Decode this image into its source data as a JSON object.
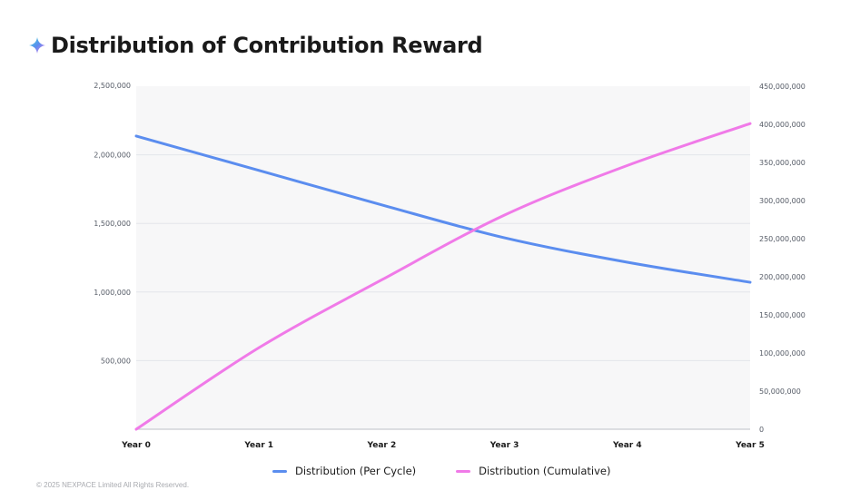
{
  "header": {
    "title": "Distribution of Contribution Reward",
    "icon": "sparkle-icon"
  },
  "colors": {
    "per_cycle": "#5b8def",
    "cumulative": "#f07ae8",
    "plot_bg": "#f7f7f8",
    "grid": "#e3e6ea"
  },
  "chart_data": {
    "type": "line",
    "title": "Distribution of Contribution Reward",
    "categories": [
      "Year 0",
      "Year 1",
      "Year 2",
      "Year 3",
      "Year 4",
      "Year 5"
    ],
    "series": [
      {
        "name": "Distribution (Per Cycle)",
        "axis": "left",
        "values": [
          2137000,
          1886000,
          1635000,
          1395000,
          1217000,
          1071000
        ]
      },
      {
        "name": "Distribution (Cumulative)",
        "axis": "right",
        "values": [
          0,
          107000000,
          196000000,
          281000000,
          346000000,
          401000000
        ]
      }
    ],
    "y_left": {
      "ylim": [
        0,
        2500000
      ],
      "ticks": [
        500000,
        1000000,
        1500000,
        2000000,
        2500000
      ],
      "tick_labels": [
        "500,000",
        "1,000,000",
        "1,500,000",
        "2,000,000",
        "2,500,000"
      ]
    },
    "y_right": {
      "ylim": [
        0,
        450000000
      ],
      "ticks": [
        0,
        50000000,
        100000000,
        150000000,
        200000000,
        250000000,
        300000000,
        350000000,
        400000000,
        450000000
      ],
      "tick_labels": [
        "0",
        "50,000,000",
        "100,000,000",
        "150,000,000",
        "200,000,000",
        "250,000,000",
        "300,000,000",
        "350,000,000",
        "400,000,000",
        "450,000,000"
      ]
    },
    "grid": true,
    "legend_placement": "bottom-center"
  },
  "legend": {
    "items": [
      {
        "label": "Distribution (Per Cycle)"
      },
      {
        "label": "Distribution (Cumulative)"
      }
    ]
  },
  "footer": {
    "copyright": "© 2025 NEXPACE Limited All Rights Reserved."
  }
}
